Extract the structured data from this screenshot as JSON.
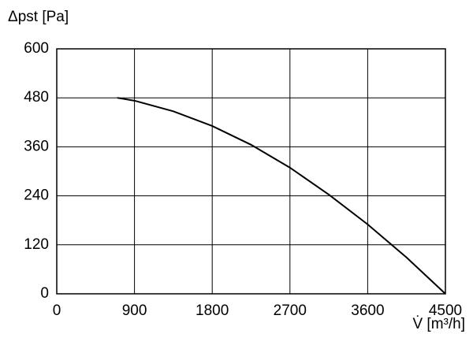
{
  "chart_data": {
    "type": "line",
    "y_label": "Δpst [Pa]",
    "x_label": "V̇ [m³/h]",
    "x": [
      700,
      900,
      1350,
      1800,
      2250,
      2700,
      3150,
      3600,
      4050,
      4500
    ],
    "series": [
      {
        "color": "#000000",
        "values": [
          480,
          473,
          447,
          411,
          365,
          309,
          243,
          170,
          89,
          0
        ]
      }
    ],
    "xlim": [
      0,
      4500
    ],
    "xticks": [
      0,
      900,
      1800,
      2700,
      3600,
      4500
    ],
    "ylim": [
      0,
      600
    ],
    "yticks": [
      0,
      120,
      240,
      360,
      480,
      600
    ],
    "grid": true
  }
}
